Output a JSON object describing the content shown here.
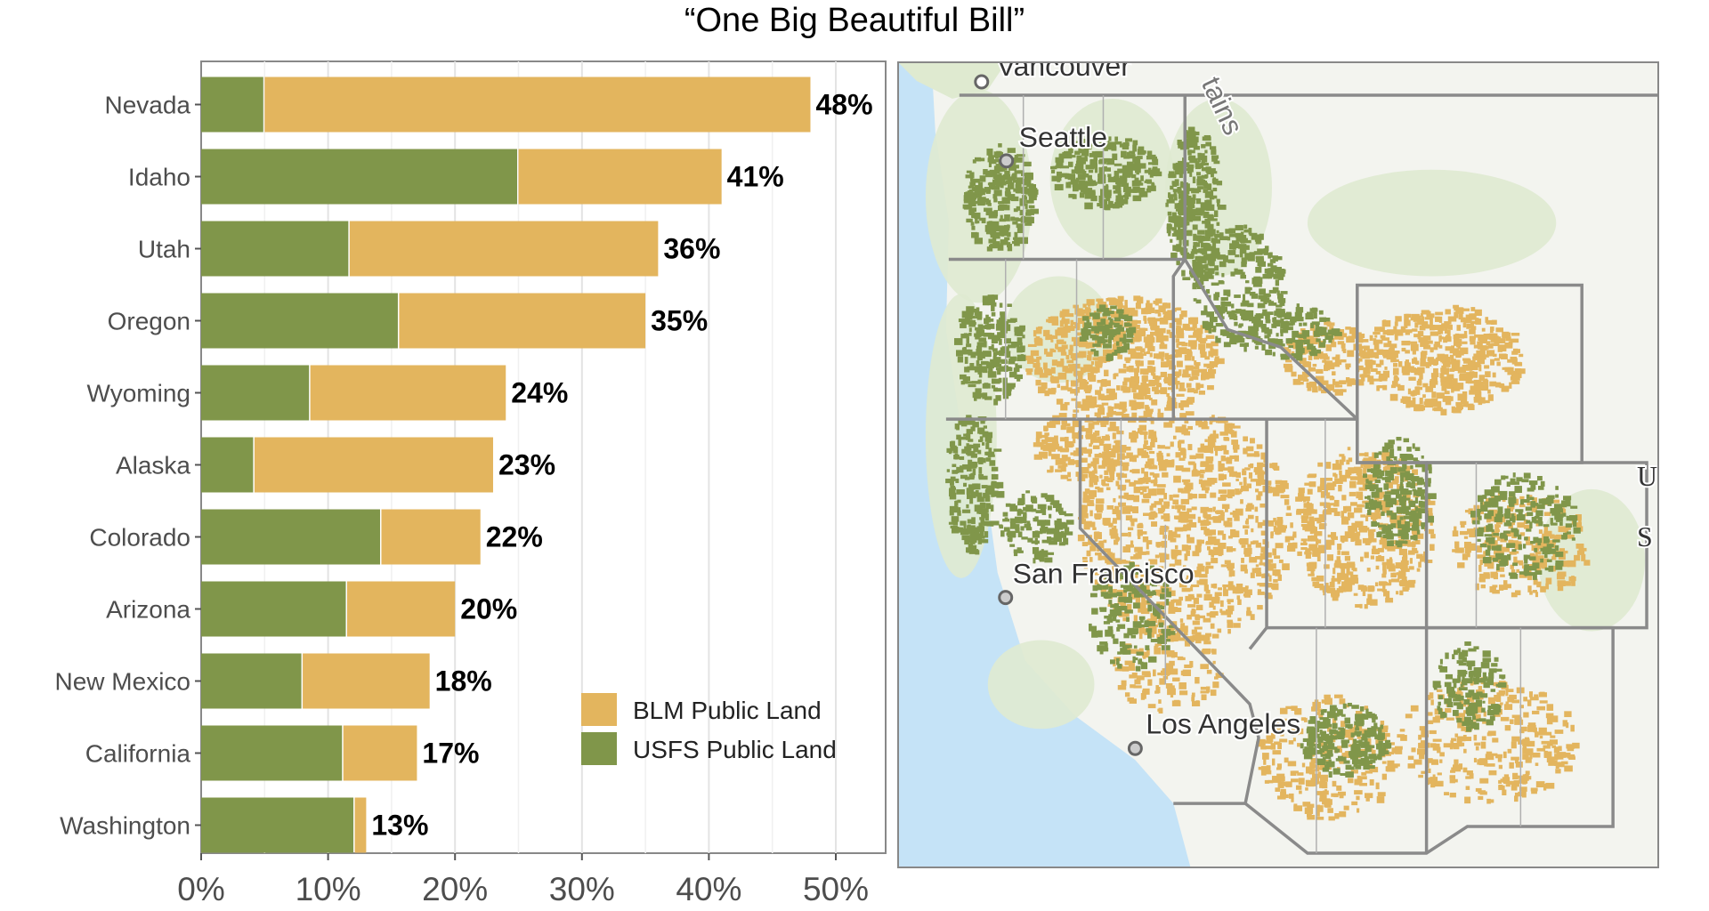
{
  "title": "“One Big Beautiful Bill”",
  "chart_data": {
    "type": "bar",
    "orientation": "horizontal",
    "stacked": true,
    "categories": [
      "Nevada",
      "Idaho",
      "Utah",
      "Oregon",
      "Wyoming",
      "Alaska",
      "Colorado",
      "Arizona",
      "New Mexico",
      "California",
      "Washington"
    ],
    "series": [
      {
        "name": "USFS Public Land",
        "color": "#80964a",
        "values": [
          5.0,
          25.0,
          11.7,
          15.6,
          8.6,
          4.2,
          14.2,
          11.5,
          8.0,
          11.2,
          12.1
        ]
      },
      {
        "name": "BLM Public Land",
        "color": "#e3b55e",
        "values": [
          43.0,
          16.0,
          24.3,
          19.4,
          15.4,
          18.8,
          7.8,
          8.5,
          10.0,
          5.8,
          0.9
        ]
      }
    ],
    "total_labels": [
      "48%",
      "41%",
      "36%",
      "35%",
      "24%",
      "23%",
      "22%",
      "20%",
      "18%",
      "17%",
      "13%"
    ],
    "x_ticks": [
      0,
      10,
      20,
      30,
      40,
      50
    ],
    "x_tick_labels": [
      "0%",
      "10%",
      "20%",
      "30%",
      "40%",
      "50%"
    ],
    "xlim": [
      0,
      54
    ],
    "grid": true,
    "legend": {
      "placement": "bottom-right",
      "entries": [
        "BLM Public Land",
        "USFS Public Land"
      ]
    }
  },
  "map": {
    "labels": {
      "vancouver": "Vancouver",
      "mountains": "tains",
      "seattle": "Seattle",
      "san_francisco": "San Francisco",
      "los_angeles": "Los Angeles",
      "edge_u": "U",
      "edge_s": "S"
    },
    "colors": {
      "ocean": "#c5e3f7",
      "land": "#f3f4ef",
      "forest": "#dfead0",
      "blm": "#e3b55e",
      "usfs": "#80964a"
    }
  }
}
